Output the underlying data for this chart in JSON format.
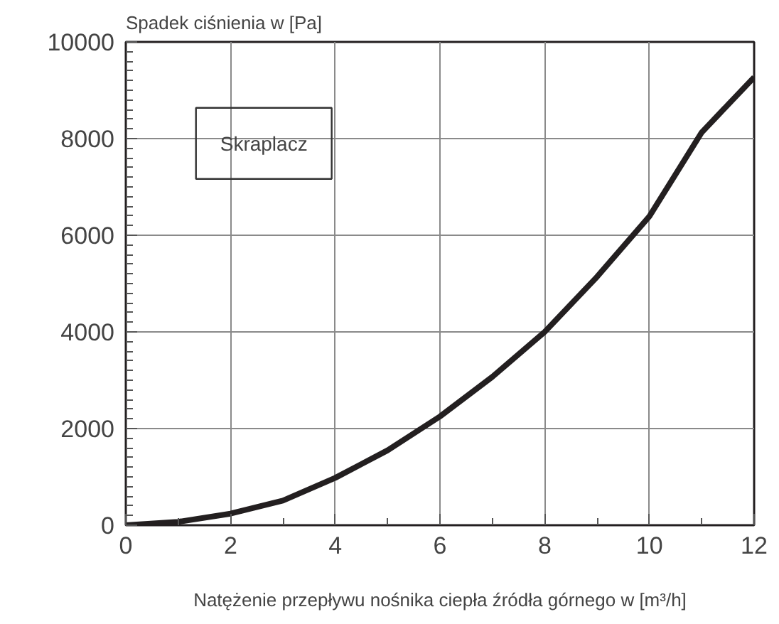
{
  "chart_data": {
    "type": "line",
    "ylabel": "Spadek ciśnienia w [Pa]",
    "xlabel": "Natężenie przepływu nośnika ciepła źródła górnego w [m³/h]",
    "x": [
      0,
      1,
      2,
      3,
      4,
      5,
      6,
      7,
      8,
      9,
      10,
      11,
      12
    ],
    "series": [
      {
        "color": "#231f20",
        "values": [
          0,
          70,
          240,
          510,
          980,
          1550,
          2250,
          3070,
          4000,
          5140,
          6390,
          8130,
          9270
        ]
      }
    ],
    "xlim": [
      0,
      12
    ],
    "ylim": [
      0,
      10000
    ],
    "xticks": [
      0,
      {
        "value": 1,
        "label": null
      },
      2,
      {
        "value": 3,
        "label": null
      },
      4,
      {
        "value": 5,
        "label": null
      },
      6,
      {
        "value": 7,
        "label": null
      },
      8,
      {
        "value": 9,
        "label": null
      },
      10,
      {
        "value": 11,
        "label": null
      },
      12
    ],
    "yticks": [
      0,
      2000,
      4000,
      6000,
      8000,
      10000
    ],
    "grid": true,
    "marker": "none",
    "line_style": "solid",
    "annotations": [
      "Skraplacz"
    ]
  }
}
